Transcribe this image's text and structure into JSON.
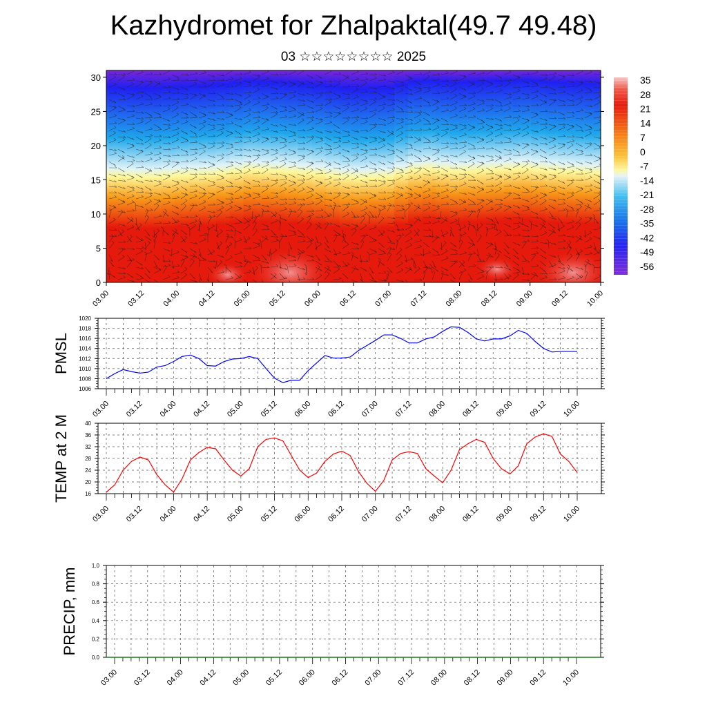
{
  "title": "Kazhydromet for Zhalpaktal(49.7 49.48)",
  "subtitle": "03 ☆☆☆☆☆☆☆☆ 2025",
  "chart_data": [
    {
      "type": "heatmap",
      "title": "Kazhydromet for Zhalpaktal(49.7 49.48)",
      "subtitle": "03 ☆☆☆☆☆☆☆☆ 2025",
      "xlabel": "",
      "ylabel": "",
      "x_tick_labels": [
        "03.00",
        "03.12",
        "04.00",
        "04.12",
        "05.00",
        "05.12",
        "06.00",
        "06.12",
        "07.00",
        "07.12",
        "08.00",
        "08.12",
        "09.00",
        "09.12",
        "10.00"
      ],
      "y_ticks": [
        0,
        5,
        10,
        15,
        20,
        25,
        30
      ],
      "ylim": [
        0,
        31
      ],
      "colorbar_labels": [
        "35",
        "28",
        "21",
        "14",
        "7",
        "0",
        "-7",
        "-14",
        "-21",
        "-28",
        "-35",
        "-42",
        "-49",
        "-56"
      ],
      "colorbar_range": [
        -63,
        42
      ],
      "zero_level_height_approx": [
        15.5,
        15.3,
        15.6,
        15.8,
        16.4,
        16.2,
        15.8,
        15.2,
        15.4,
        16.6,
        16.2,
        16.4,
        16.6,
        16.2,
        16.0
      ],
      "colors": {
        "hot": "#e51a0c",
        "warm": "#f89a1a",
        "zero": "#fef79a",
        "cool": "#1fa8ec",
        "cold": "#2020f0",
        "top": "#7a25d8"
      },
      "grid": false
    },
    {
      "type": "line",
      "ylabel": "PMSL",
      "ylim": [
        1006,
        1020
      ],
      "y_ticks": [
        1006,
        1008,
        1010,
        1012,
        1014,
        1016,
        1018,
        1020
      ],
      "x_tick_labels": [
        "03.00",
        "03.12",
        "04.00",
        "04.12",
        "05.00",
        "05.12",
        "06.00",
        "06.12",
        "07.00",
        "07.12",
        "08.00",
        "08.12",
        "09.00",
        "09.12",
        "10.00"
      ],
      "x_hours": [
        0,
        3,
        6,
        9,
        12,
        15,
        18,
        21,
        24,
        27,
        30,
        33,
        36,
        39,
        42,
        45,
        48,
        51,
        54,
        57,
        60,
        63,
        66,
        69,
        72,
        75,
        78,
        81,
        84,
        87,
        90,
        93,
        96,
        99,
        102,
        105,
        108,
        111,
        114,
        117,
        120,
        123,
        126,
        129,
        132,
        135,
        138,
        141,
        144,
        147,
        150,
        153,
        156,
        159,
        162,
        165,
        168
      ],
      "series": [
        {
          "color": "#0000ff",
          "values": [
            1008.0,
            1009.0,
            1009.8,
            1009.4,
            1009.1,
            1009.3,
            1010.3,
            1010.6,
            1011.4,
            1012.4,
            1012.7,
            1012.0,
            1010.6,
            1010.5,
            1011.4,
            1011.9,
            1012.0,
            1012.4,
            1012.0,
            1010.0,
            1008.1,
            1007.2,
            1007.7,
            1007.7,
            1009.6,
            1011.1,
            1012.6,
            1012.1,
            1012.1,
            1012.3,
            1013.6,
            1014.6,
            1015.6,
            1016.7,
            1016.7,
            1016.0,
            1015.1,
            1015.1,
            1015.9,
            1016.3,
            1017.4,
            1018.3,
            1018.2,
            1017.2,
            1015.9,
            1015.5,
            1015.9,
            1015.9,
            1016.5,
            1017.6,
            1017.0,
            1015.4,
            1014.0,
            1013.3,
            1013.4,
            1013.4,
            1013.4
          ]
        }
      ],
      "grid": true
    },
    {
      "type": "line",
      "ylabel": "TEMP at 2 M",
      "ylim": [
        16,
        40
      ],
      "y_ticks": [
        16,
        20,
        24,
        28,
        32,
        36,
        40
      ],
      "x_tick_labels": [
        "03.00",
        "03.12",
        "04.00",
        "04.12",
        "05.00",
        "05.12",
        "06.00",
        "06.12",
        "07.00",
        "07.12",
        "08.00",
        "08.12",
        "09.00",
        "09.12",
        "10.00"
      ],
      "x_hours": [
        0,
        3,
        6,
        9,
        12,
        15,
        18,
        21,
        24,
        27,
        30,
        33,
        36,
        39,
        42,
        45,
        48,
        51,
        54,
        57,
        60,
        63,
        66,
        69,
        72,
        75,
        78,
        81,
        84,
        87,
        90,
        93,
        96,
        99,
        102,
        105,
        108,
        111,
        114,
        117,
        120,
        123,
        126,
        129,
        132,
        135,
        138,
        141,
        144,
        147,
        150,
        153,
        156,
        159,
        162,
        165,
        168
      ],
      "series": [
        {
          "color": "#ff0000",
          "values": [
            16.5,
            19.0,
            24.0,
            27.0,
            28.5,
            27.5,
            22.5,
            19.0,
            16.5,
            21.0,
            27.5,
            30.0,
            31.8,
            31.3,
            27.5,
            24.0,
            22.0,
            24.5,
            32.0,
            34.5,
            35.0,
            34.0,
            29.0,
            24.0,
            21.5,
            23.0,
            27.0,
            29.5,
            30.5,
            29.0,
            23.5,
            19.5,
            16.8,
            20.5,
            27.5,
            29.7,
            30.3,
            29.7,
            24.5,
            22.0,
            19.7,
            24.0,
            31.0,
            33.0,
            34.5,
            33.5,
            28.0,
            24.5,
            22.7,
            25.5,
            33.0,
            35.3,
            36.4,
            35.5,
            29.5,
            27.0,
            23.2
          ]
        }
      ],
      "grid": true
    },
    {
      "type": "bar",
      "ylabel": "PRECIP, mm",
      "ylim": [
        0.0,
        1.0
      ],
      "y_tick_labels": [
        "0.0",
        "0.2",
        "0.4",
        "0.6",
        "0.8",
        "1.0"
      ],
      "x_tick_labels": [
        "03.00",
        "03.12",
        "04.00",
        "04.12",
        "05.00",
        "05.12",
        "06.00",
        "06.12",
        "07.00",
        "07.12",
        "08.00",
        "08.12",
        "09.00",
        "09.12",
        "10.00"
      ],
      "values": [],
      "grid": true
    }
  ]
}
